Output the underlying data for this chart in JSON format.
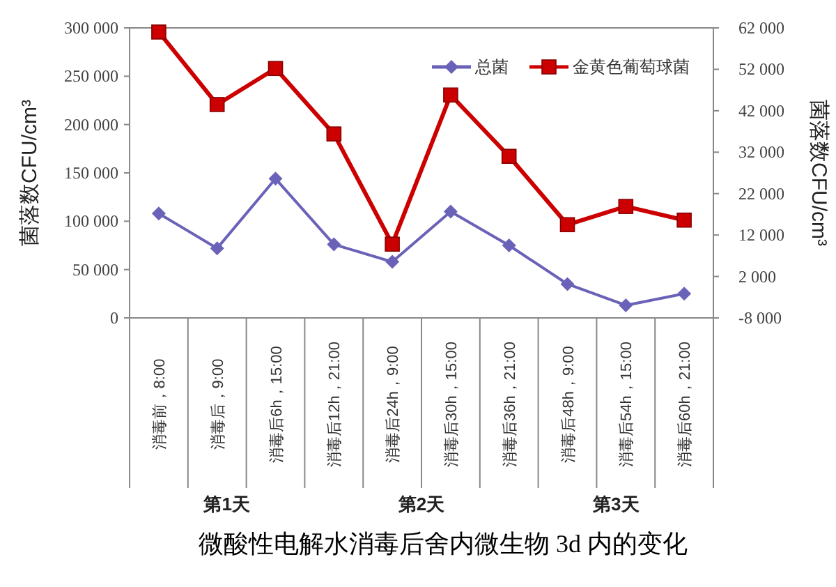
{
  "chart_data": {
    "type": "line",
    "title": "微酸性电解水消毒后舍内微生物 3d 内的变化",
    "ylabel": "菌落数CFU/cm³",
    "y2label": "菌落数CFU/cm³",
    "categories": [
      "消毒前，8:00",
      "消毒后，9:00",
      "消毒后6h，15:00",
      "消毒后12h，21:00",
      "消毒后24h，9:00",
      "消毒后30h，15:00",
      "消毒后36h，21:00",
      "消毒后48h，9:00",
      "消毒后54h，15:00",
      "消毒后60h，21:00"
    ],
    "series": [
      {
        "name": "总菌",
        "color": "#6a62b8",
        "marker": "diamond",
        "values": [
          108000,
          72000,
          144000,
          76000,
          58000,
          110000,
          75000,
          35000,
          13000,
          25000
        ]
      },
      {
        "name": "金黄色葡萄球菌",
        "color": "#cc0000",
        "marker": "square",
        "axis": "y2",
        "values": [
          61000,
          43500,
          52200,
          36400,
          9800,
          45800,
          31000,
          14500,
          18900,
          15600
        ]
      }
    ],
    "ylim": [
      0,
      300000
    ],
    "yticks": [
      {
        "value": 0,
        "label": "0"
      },
      {
        "value": 50000,
        "label": "50 000"
      },
      {
        "value": 100000,
        "label": "100 000"
      },
      {
        "value": 150000,
        "label": "150 000"
      },
      {
        "value": 200000,
        "label": "200 000"
      },
      {
        "value": 250000,
        "label": "250 000"
      },
      {
        "value": 300000,
        "label": "300 000"
      }
    ],
    "y2lim": [
      -8000,
      62000
    ],
    "y2ticks": [
      {
        "value": -8000,
        "label": "-8 000"
      },
      {
        "value": 2000,
        "label": "2 000"
      },
      {
        "value": 12000,
        "label": "12 000"
      },
      {
        "value": 22000,
        "label": "22 000"
      },
      {
        "value": 32000,
        "label": "32 000"
      },
      {
        "value": 42000,
        "label": "42 000"
      },
      {
        "value": 52000,
        "label": "52 000"
      },
      {
        "value": 62000,
        "label": "62 000"
      }
    ],
    "annotations": [
      "第1天",
      "第2天",
      "第3天"
    ],
    "grid": false,
    "legend": "top right",
    "line_style": "solid"
  }
}
